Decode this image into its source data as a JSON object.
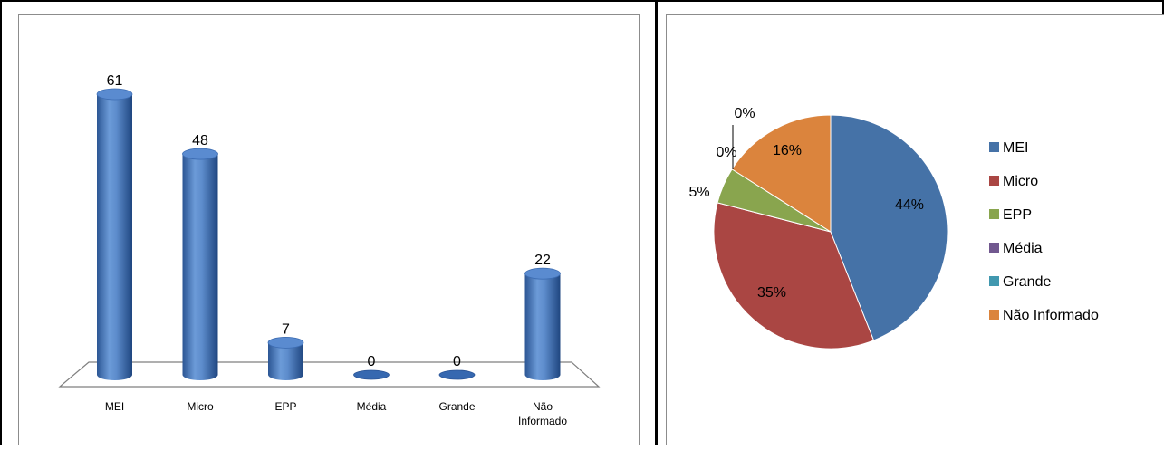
{
  "chart_data": [
    {
      "type": "bar",
      "categories": [
        "MEI",
        "Micro",
        "EPP",
        "Média",
        "Grande",
        "Não Informado"
      ],
      "category_label_lines": [
        [
          "MEI"
        ],
        [
          "Micro"
        ],
        [
          "EPP"
        ],
        [
          "Média"
        ],
        [
          "Grande"
        ],
        [
          "Não",
          "Informado"
        ]
      ],
      "values": [
        61,
        48,
        7,
        0,
        0,
        22
      ],
      "data_labels": [
        "61",
        "48",
        "7",
        "0",
        "0",
        "22"
      ],
      "ylim": [
        0,
        61
      ],
      "style": "3d-cylinder",
      "grid": false,
      "legend": "none",
      "color": "#4f81bd"
    },
    {
      "type": "pie",
      "labels": [
        "MEI",
        "Micro",
        "EPP",
        "Média",
        "Grande",
        "Não Informado"
      ],
      "values": [
        44,
        35,
        5,
        0,
        0,
        16
      ],
      "data_labels": [
        "44%",
        "35%",
        "5%",
        "0%",
        "0%",
        "16%"
      ],
      "colors": [
        "#4572a7",
        "#aa4643",
        "#89a54e",
        "#71588f",
        "#4198af",
        "#db843d"
      ],
      "legend": "right"
    }
  ]
}
